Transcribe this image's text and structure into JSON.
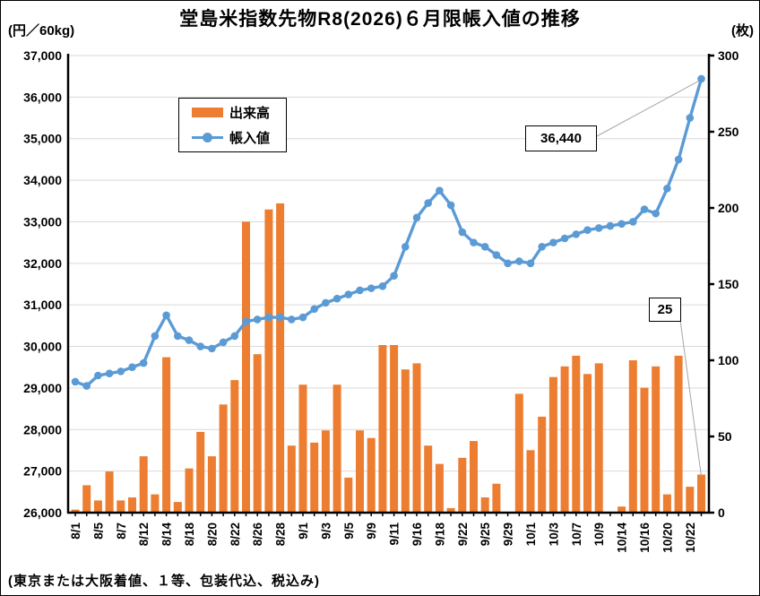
{
  "title": "堂島米指数先物R8(2026)６月限帳入値の推移",
  "left_axis_unit": "(円／60kg)",
  "right_axis_unit": "(枚)",
  "footnote": "(東京または大阪着値、１等、包装代込、税込み)",
  "legend": {
    "volume": "出来高",
    "price": "帳入値"
  },
  "annotations": {
    "last_price": "36,440",
    "last_volume": "25"
  },
  "colors": {
    "bar": "#ED7D31",
    "line": "#5B9BD5",
    "grid": "#D9D9D9",
    "axis": "#000000",
    "leader": "#A6A6A6"
  },
  "chart_data": {
    "type": "bar",
    "note": "combo chart: volume bars on right axis, settlement price line on left axis",
    "categories": [
      "8/1",
      "",
      "8/5",
      "",
      "8/7",
      "",
      "8/12",
      "",
      "8/14",
      "",
      "8/18",
      "",
      "8/20",
      "",
      "8/22",
      "",
      "8/26",
      "",
      "8/28",
      "",
      "9/1",
      "",
      "9/3",
      "",
      "9/5",
      "",
      "9/9",
      "",
      "9/11",
      "",
      "9/16",
      "",
      "9/18",
      "",
      "9/22",
      "",
      "9/25",
      "",
      "9/29",
      "",
      "10/1",
      "",
      "10/3",
      "",
      "10/7",
      "",
      "10/9",
      "",
      "10/14",
      "",
      "10/16",
      "",
      "10/20",
      "",
      "10/22",
      ""
    ],
    "series": [
      {
        "name": "出来高",
        "type": "bar",
        "axis": "right",
        "color": "#ED7D31",
        "values": [
          2,
          18,
          8,
          27,
          8,
          10,
          37,
          12,
          102,
          7,
          29,
          53,
          37,
          71,
          87,
          191,
          104,
          199,
          203,
          44,
          84,
          46,
          54,
          84,
          23,
          54,
          49,
          110,
          110,
          94,
          98,
          44,
          32,
          3,
          36,
          47,
          10,
          19,
          0,
          78,
          41,
          63,
          89,
          96,
          103,
          91,
          98,
          0,
          4,
          100,
          82,
          96,
          12,
          103,
          17,
          25
        ]
      },
      {
        "name": "帳入値",
        "type": "line",
        "axis": "left",
        "color": "#5B9BD5",
        "values": [
          29150,
          29050,
          29300,
          29350,
          29400,
          29500,
          29600,
          30250,
          30750,
          30250,
          30150,
          30000,
          29950,
          30100,
          30250,
          30600,
          30650,
          30700,
          30700,
          30650,
          30700,
          30900,
          31050,
          31150,
          31250,
          31350,
          31400,
          31450,
          31700,
          32400,
          33100,
          33450,
          33750,
          33400,
          32750,
          32500,
          32400,
          32200,
          32000,
          32050,
          32000,
          32400,
          32500,
          32600,
          32700,
          32800,
          32850,
          32900,
          32950,
          33000,
          33300,
          33200,
          33800,
          34500,
          35500,
          36440
        ]
      }
    ],
    "left_axis": {
      "min": 26000,
      "max": 37000,
      "step": 1000,
      "label": "(円／60kg)"
    },
    "right_axis": {
      "min": 0,
      "max": 300,
      "step": 50,
      "label": "(枚)"
    },
    "grid": true,
    "legend_position": "inside-top-left",
    "last_price_annotation": 36440,
    "last_volume_annotation": 25
  }
}
